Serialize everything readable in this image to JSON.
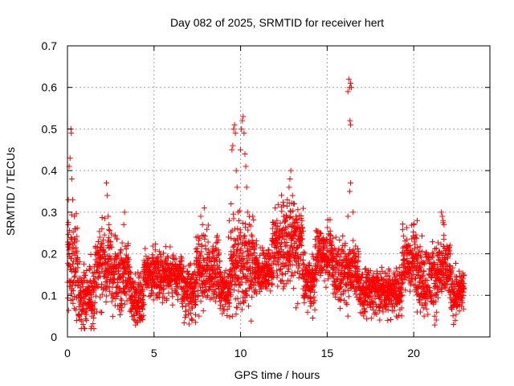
{
  "chart_data": {
    "type": "scatter",
    "title": "Day 082 of 2025, SRMTID for receiver hert",
    "xlabel": "GPS time / hours",
    "ylabel": "SRMTID / TECUs",
    "xlim": [
      0,
      24.4
    ],
    "ylim": [
      0,
      0.7
    ],
    "xticks": [
      0,
      5,
      10,
      15,
      20
    ],
    "yticks": [
      0,
      0.1,
      0.2,
      0.3,
      0.4,
      0.5,
      0.6,
      0.7
    ],
    "grid": true,
    "marker": "+",
    "colors": {
      "marker": "#ff0000",
      "grid": "#a0a0a0",
      "axis": "#000000"
    },
    "series": [
      {
        "name": "SRMTID",
        "segments": [
          {
            "start": 0.0,
            "end": 0.6,
            "step": 0.02,
            "base": 0.18,
            "spread": 0.12
          },
          {
            "start": 0.6,
            "end": 1.6,
            "step": 0.02,
            "base": 0.1,
            "spread": 0.08
          },
          {
            "start": 1.6,
            "end": 2.5,
            "step": 0.02,
            "base": 0.17,
            "spread": 0.1
          },
          {
            "start": 2.5,
            "end": 3.6,
            "step": 0.02,
            "base": 0.15,
            "spread": 0.09
          },
          {
            "start": 3.6,
            "end": 4.4,
            "step": 0.02,
            "base": 0.09,
            "spread": 0.06
          },
          {
            "start": 4.4,
            "end": 6.6,
            "step": 0.02,
            "base": 0.15,
            "spread": 0.06
          },
          {
            "start": 6.6,
            "end": 7.4,
            "step": 0.02,
            "base": 0.11,
            "spread": 0.07
          },
          {
            "start": 7.4,
            "end": 8.8,
            "step": 0.02,
            "base": 0.16,
            "spread": 0.09
          },
          {
            "start": 8.8,
            "end": 9.4,
            "step": 0.02,
            "base": 0.11,
            "spread": 0.06
          },
          {
            "start": 9.4,
            "end": 10.8,
            "step": 0.02,
            "base": 0.18,
            "spread": 0.12
          },
          {
            "start": 10.8,
            "end": 11.8,
            "step": 0.02,
            "base": 0.16,
            "spread": 0.06
          },
          {
            "start": 11.8,
            "end": 13.6,
            "step": 0.02,
            "base": 0.22,
            "spread": 0.1
          },
          {
            "start": 13.6,
            "end": 14.3,
            "step": 0.02,
            "base": 0.13,
            "spread": 0.07
          },
          {
            "start": 14.3,
            "end": 15.3,
            "step": 0.02,
            "base": 0.2,
            "spread": 0.07
          },
          {
            "start": 15.3,
            "end": 16.8,
            "step": 0.02,
            "base": 0.16,
            "spread": 0.08
          },
          {
            "start": 16.8,
            "end": 19.3,
            "step": 0.02,
            "base": 0.11,
            "spread": 0.06
          },
          {
            "start": 19.3,
            "end": 20.3,
            "step": 0.02,
            "base": 0.18,
            "spread": 0.09
          },
          {
            "start": 20.3,
            "end": 21.4,
            "step": 0.02,
            "base": 0.14,
            "spread": 0.09
          },
          {
            "start": 21.4,
            "end": 22.1,
            "step": 0.02,
            "base": 0.16,
            "spread": 0.09
          },
          {
            "start": 22.1,
            "end": 22.9,
            "step": 0.02,
            "base": 0.11,
            "spread": 0.06
          }
        ],
        "spikes": [
          [
            0.05,
            0.33
          ],
          [
            0.1,
            0.41
          ],
          [
            0.15,
            0.43
          ],
          [
            0.2,
            0.5
          ],
          [
            0.22,
            0.49
          ],
          [
            0.25,
            0.38
          ],
          [
            0.3,
            0.33
          ],
          [
            0.4,
            0.29
          ],
          [
            2.25,
            0.37
          ],
          [
            2.3,
            0.34
          ],
          [
            2.35,
            0.29
          ],
          [
            2.4,
            0.27
          ],
          [
            3.3,
            0.3
          ],
          [
            3.25,
            0.27
          ],
          [
            7.7,
            0.29
          ],
          [
            7.8,
            0.27
          ],
          [
            7.9,
            0.31
          ],
          [
            9.3,
            0.24
          ],
          [
            9.35,
            0.28
          ],
          [
            9.45,
            0.32
          ],
          [
            9.5,
            0.45
          ],
          [
            9.55,
            0.46
          ],
          [
            9.6,
            0.5
          ],
          [
            9.65,
            0.51
          ],
          [
            9.7,
            0.49
          ],
          [
            9.75,
            0.4
          ],
          [
            9.8,
            0.36
          ],
          [
            9.85,
            0.3
          ],
          [
            10.0,
            0.45
          ],
          [
            10.05,
            0.5
          ],
          [
            10.1,
            0.52
          ],
          [
            10.15,
            0.53
          ],
          [
            10.2,
            0.49
          ],
          [
            10.25,
            0.44
          ],
          [
            10.3,
            0.41
          ],
          [
            10.35,
            0.36
          ],
          [
            10.4,
            0.3
          ],
          [
            10.5,
            0.27
          ],
          [
            10.7,
            0.29
          ],
          [
            12.0,
            0.31
          ],
          [
            12.1,
            0.28
          ],
          [
            12.5,
            0.29
          ],
          [
            12.7,
            0.33
          ],
          [
            12.8,
            0.36
          ],
          [
            12.85,
            0.38
          ],
          [
            12.9,
            0.4
          ],
          [
            13.0,
            0.34
          ],
          [
            13.1,
            0.32
          ],
          [
            13.2,
            0.29
          ],
          [
            16.2,
            0.59
          ],
          [
            16.25,
            0.62
          ],
          [
            16.3,
            0.6
          ],
          [
            16.35,
            0.61
          ],
          [
            16.4,
            0.6
          ],
          [
            16.32,
            0.52
          ],
          [
            16.35,
            0.51
          ],
          [
            16.3,
            0.35
          ],
          [
            16.35,
            0.37
          ],
          [
            16.2,
            0.29
          ],
          [
            16.5,
            0.3
          ],
          [
            21.6,
            0.3
          ],
          [
            21.65,
            0.29
          ],
          [
            21.7,
            0.28
          ],
          [
            21.75,
            0.27
          ],
          [
            20.0,
            0.27
          ],
          [
            20.2,
            0.28
          ]
        ],
        "low_points": [
          [
            0.8,
            0.02
          ],
          [
            0.9,
            0.03
          ],
          [
            1.1,
            0.04
          ],
          [
            1.4,
            0.05
          ],
          [
            1.9,
            0.06
          ],
          [
            3.9,
            0.04
          ],
          [
            4.0,
            0.035
          ],
          [
            4.2,
            0.04
          ],
          [
            7.2,
            0.04
          ],
          [
            7.4,
            0.035
          ],
          [
            7.6,
            0.05
          ],
          [
            9.8,
            0.07
          ],
          [
            13.2,
            0.07
          ],
          [
            13.3,
            0.08
          ],
          [
            14.1,
            0.08
          ],
          [
            16.2,
            0.05
          ],
          [
            17.2,
            0.06
          ],
          [
            18.0,
            0.07
          ],
          [
            18.5,
            0.04
          ],
          [
            19.0,
            0.05
          ],
          [
            20.2,
            0.06
          ],
          [
            20.6,
            0.05
          ],
          [
            22.3,
            0.03
          ],
          [
            22.4,
            0.04
          ]
        ]
      }
    ]
  }
}
